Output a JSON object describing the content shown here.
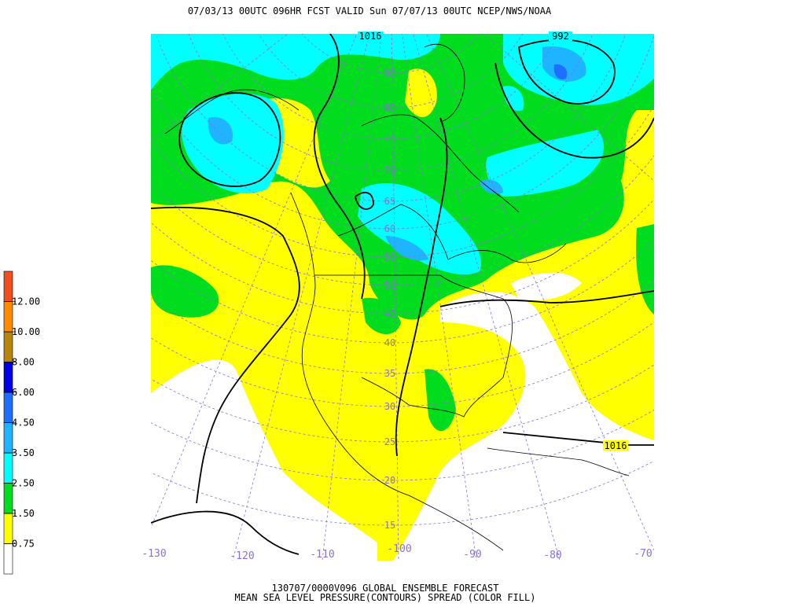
{
  "header": {
    "title": "07/03/13 00UTC  096HR  FCST VALID Sun 07/07/13 00UTC  NCEP/NWS/NOAA"
  },
  "legend": {
    "labels": [
      "0.75",
      "1.50",
      "2.50",
      "3.50",
      "4.50",
      "6.00",
      "8.00",
      "10.00",
      "12.00"
    ],
    "colors": [
      "#ffffff",
      "#ffff00",
      "#00dc1e",
      "#00ffff",
      "#1eb4ff",
      "#1e6eff",
      "#0000e6",
      "#b8860b",
      "#ff8c00",
      "#f0501e"
    ]
  },
  "map": {
    "latitude_labels": [
      "85",
      "80",
      "75",
      "70",
      "65",
      "60",
      "55",
      "50",
      "45",
      "40",
      "35",
      "30",
      "25",
      "20",
      "15"
    ],
    "longitude_labels": [
      "-130",
      "-120",
      "-110",
      "-100",
      "-90",
      "-80",
      "-70"
    ],
    "contour_labels": [
      "1016",
      "992",
      "1016"
    ]
  },
  "footer": {
    "line1": "130707/0000V096 GLOBAL ENSEMBLE FORECAST",
    "line2": "MEAN SEA LEVEL PRESSURE(CONTOURS) SPREAD (COLOR FILL)"
  }
}
